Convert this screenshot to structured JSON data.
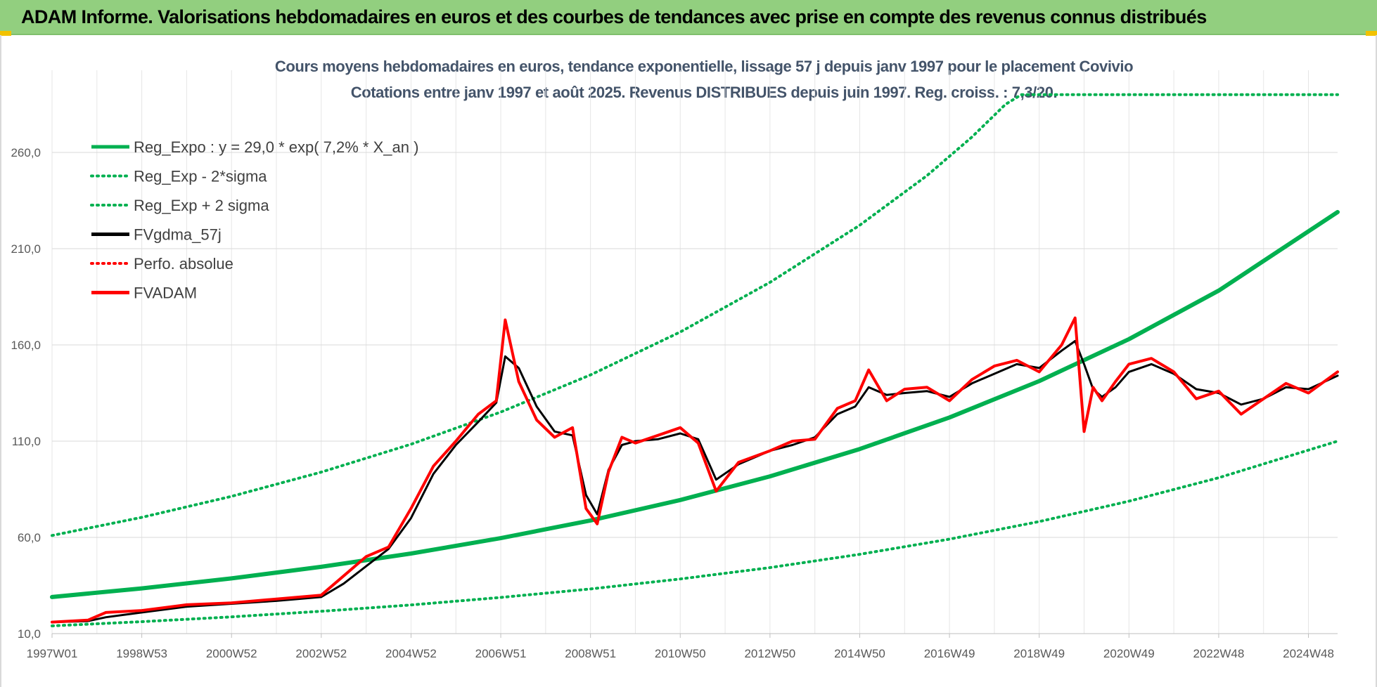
{
  "header": {
    "title": "ADAM Informe. Valorisations hebdomadaires en euros et des courbes de tendances avec prise en compte des revenus connus distribués"
  },
  "chart_data": {
    "type": "line",
    "title": "Cours moyens hebdomadaires en euros, tendance exponentielle, lissage 57 j depuis janv 1997 pour le placement Covivio",
    "subtitle": "Cotations entre janv 1997 et août 2025.  Revenus DISTRIBUES depuis juin 1997.  Reg. croiss. : 7,3/20.",
    "xlabel": "",
    "ylabel": "",
    "x_range": [
      1997.0,
      2025.65
    ],
    "ylim": [
      10,
      290
    ],
    "grid": true,
    "legend_position": "top-left",
    "y_ticks": [
      "10,0",
      "60,0",
      "110,0",
      "160,0",
      "210,0",
      "260,0"
    ],
    "x_tick_labels": [
      {
        "label": "1997W01",
        "x": 1997.0
      },
      {
        "label": "1998W53",
        "x": 1999.0
      },
      {
        "label": "2000W52",
        "x": 2001.0
      },
      {
        "label": "2002W52",
        "x": 2003.0
      },
      {
        "label": "2004W52",
        "x": 2005.0
      },
      {
        "label": "2006W51",
        "x": 2007.0
      },
      {
        "label": "2008W51",
        "x": 2009.0
      },
      {
        "label": "2010W50",
        "x": 2011.0
      },
      {
        "label": "2012W50",
        "x": 2013.0
      },
      {
        "label": "2014W50",
        "x": 2015.0
      },
      {
        "label": "2016W49",
        "x": 2017.0
      },
      {
        "label": "2018W49",
        "x": 2019.0
      },
      {
        "label": "2020W49",
        "x": 2021.0
      },
      {
        "label": "2022W48",
        "x": 2023.0
      },
      {
        "label": "2024W48",
        "x": 2025.0
      }
    ],
    "series": [
      {
        "name": "Reg_Expo : y = 29,0 * exp( 7,2% *  X_an )",
        "style": "solid",
        "color": "#00b050",
        "width": 6,
        "x": [
          1997.0,
          1999.0,
          2001.0,
          2003.0,
          2005.0,
          2007.0,
          2009.0,
          2011.0,
          2013.0,
          2015.0,
          2017.0,
          2019.0,
          2021.0,
          2023.0,
          2025.65
        ],
        "values": [
          29.0,
          33.5,
          38.7,
          44.7,
          51.6,
          59.6,
          68.8,
          79.4,
          91.7,
          105.9,
          122.3,
          141.2,
          163.0,
          188.2,
          229.0
        ]
      },
      {
        "name": "Reg_Exp - 2*sigma",
        "style": "dotted",
        "color": "#00b050",
        "width": 4,
        "x": [
          1997.0,
          1999.0,
          2001.0,
          2003.0,
          2005.0,
          2007.0,
          2009.0,
          2011.0,
          2013.0,
          2015.0,
          2017.0,
          2019.0,
          2021.0,
          2023.0,
          2025.65
        ],
        "values": [
          14.0,
          16.2,
          18.7,
          21.6,
          24.9,
          28.8,
          33.2,
          38.4,
          44.3,
          51.2,
          59.1,
          68.2,
          78.8,
          91.0,
          110.0
        ]
      },
      {
        "name": "Reg_Exp + 2 sigma",
        "style": "dotted",
        "color": "#00b050",
        "width": 4,
        "x": [
          1997.0,
          1999.0,
          2001.0,
          2003.0,
          2005.0,
          2007.0,
          2009.0,
          2011.0,
          2013.0,
          2015.0,
          2016.5,
          2017.5,
          2018.25,
          2018.6,
          2025.65
        ],
        "values": [
          61.0,
          70.4,
          81.3,
          93.9,
          108.4,
          125.1,
          144.4,
          166.7,
          192.5,
          222.2,
          248.0,
          268.0,
          285.0,
          290.0,
          290.0
        ]
      },
      {
        "name": "FVgdma_57j",
        "style": "solid",
        "color": "#000000",
        "width": 3,
        "x": [
          1997.0,
          1997.8,
          1998.2,
          1999.0,
          2000.0,
          2001.0,
          2002.0,
          2003.0,
          2003.5,
          2004.0,
          2004.5,
          2005.0,
          2005.5,
          2006.0,
          2006.5,
          2006.9,
          2007.1,
          2007.4,
          2007.8,
          2008.2,
          2008.6,
          2008.9,
          2009.15,
          2009.4,
          2009.7,
          2010.0,
          2010.5,
          2011.0,
          2011.4,
          2011.8,
          2012.3,
          2013.0,
          2013.5,
          2014.0,
          2014.5,
          2014.9,
          2015.2,
          2015.6,
          2016.0,
          2016.5,
          2017.0,
          2017.5,
          2018.0,
          2018.5,
          2019.0,
          2019.5,
          2019.8,
          2020.0,
          2020.2,
          2020.4,
          2020.7,
          2021.0,
          2021.5,
          2022.0,
          2022.5,
          2023.0,
          2023.5,
          2024.0,
          2024.5,
          2025.0,
          2025.65
        ],
        "values": [
          16.0,
          16.5,
          18.5,
          21.0,
          24.0,
          25.5,
          27.0,
          29.0,
          36.0,
          45.0,
          54.0,
          70.0,
          93.0,
          108.0,
          120.0,
          130.0,
          154.0,
          148.0,
          128.0,
          115.0,
          113.0,
          82.0,
          72.0,
          95.0,
          108.0,
          110.0,
          111.0,
          114.0,
          111.0,
          90.0,
          98.0,
          105.0,
          108.0,
          112.0,
          124.0,
          128.0,
          138.0,
          134.0,
          135.0,
          136.0,
          133.0,
          140.0,
          145.0,
          150.0,
          148.0,
          157.0,
          162.0,
          150.0,
          137.0,
          133.0,
          138.0,
          146.0,
          150.0,
          145.0,
          137.0,
          135.0,
          129.0,
          132.0,
          138.0,
          137.0,
          144.0
        ]
      },
      {
        "name": "Perfo. absolue",
        "style": "dotted",
        "color": "#ff0000",
        "width": 3,
        "x": [],
        "values": []
      },
      {
        "name": "FVADAM",
        "style": "solid",
        "color": "#ff0000",
        "width": 4,
        "x": [
          1997.0,
          1997.8,
          1998.2,
          1999.0,
          2000.0,
          2001.0,
          2002.0,
          2003.0,
          2003.5,
          2004.0,
          2004.5,
          2005.0,
          2005.5,
          2006.0,
          2006.5,
          2006.9,
          2007.1,
          2007.4,
          2007.8,
          2008.2,
          2008.6,
          2008.9,
          2009.15,
          2009.4,
          2009.7,
          2010.0,
          2010.5,
          2011.0,
          2011.4,
          2011.8,
          2012.3,
          2013.0,
          2013.5,
          2014.0,
          2014.5,
          2014.9,
          2015.2,
          2015.6,
          2016.0,
          2016.5,
          2017.0,
          2017.5,
          2018.0,
          2018.5,
          2019.0,
          2019.5,
          2019.8,
          2020.0,
          2020.2,
          2020.4,
          2020.7,
          2021.0,
          2021.5,
          2022.0,
          2022.5,
          2023.0,
          2023.5,
          2024.0,
          2024.5,
          2025.0,
          2025.65
        ],
        "values": [
          16.0,
          17.0,
          21.0,
          22.0,
          25.0,
          26.0,
          28.0,
          30.0,
          40.0,
          50.0,
          55.0,
          75.0,
          97.0,
          110.0,
          124.0,
          131.0,
          173.0,
          141.0,
          121.0,
          112.0,
          117.0,
          75.0,
          67.0,
          94.0,
          112.0,
          109.0,
          113.0,
          117.0,
          109.0,
          84.0,
          99.0,
          105.0,
          110.0,
          111.0,
          127.0,
          131.0,
          147.0,
          131.0,
          137.0,
          138.0,
          131.0,
          142.0,
          149.0,
          152.0,
          146.0,
          160.0,
          174.0,
          115.0,
          138.0,
          131.0,
          141.0,
          150.0,
          153.0,
          146.0,
          132.0,
          136.0,
          124.0,
          132.0,
          140.0,
          135.0,
          146.0
        ]
      }
    ]
  }
}
